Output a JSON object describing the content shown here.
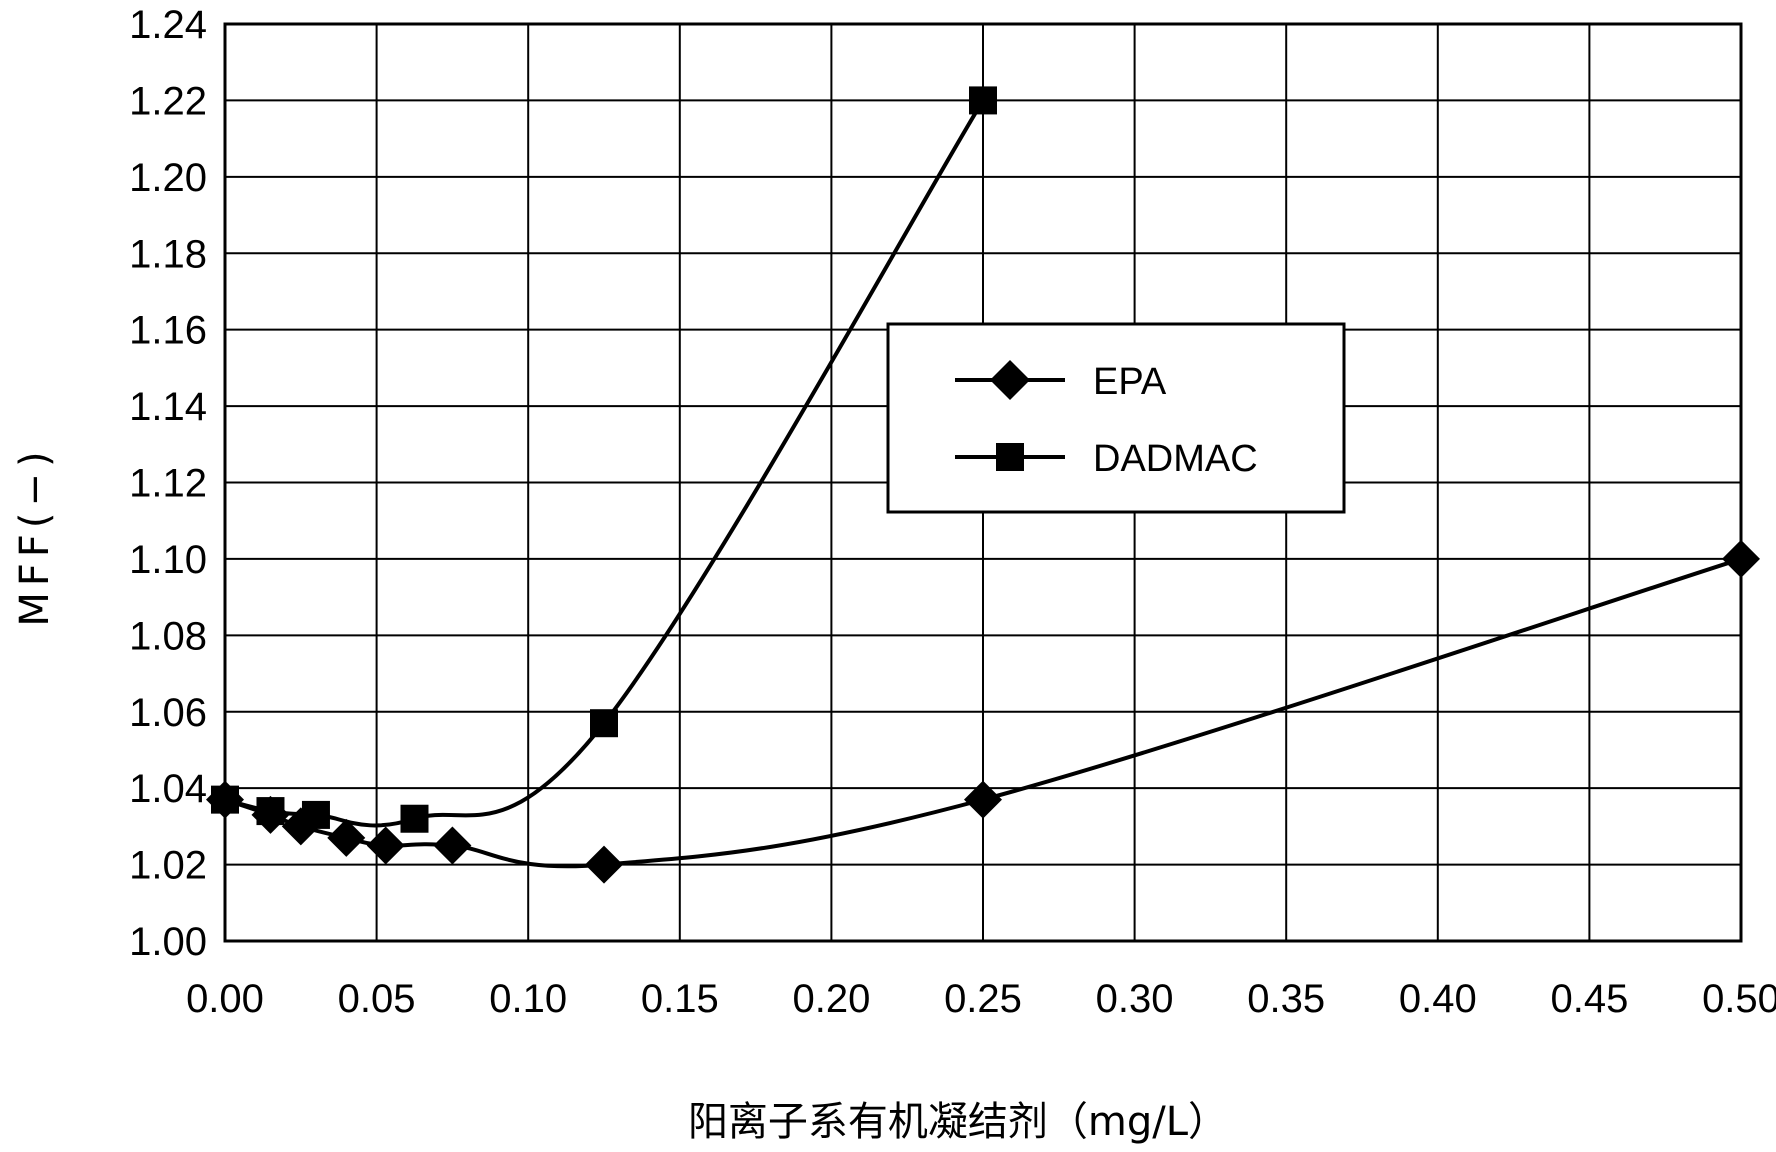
{
  "chart_data": {
    "type": "line",
    "title": "",
    "xlabel": "阳离子系有机凝结剂（mg/L）",
    "ylabel": "MFF(−)",
    "xlim": [
      0,
      0.5
    ],
    "ylim": [
      1.0,
      1.24
    ],
    "xticks": [
      "0.00",
      "0.05",
      "0.10",
      "0.15",
      "0.20",
      "0.25",
      "0.30",
      "0.35",
      "0.40",
      "0.45",
      "0.50"
    ],
    "yticks": [
      "1.00",
      "1.02",
      "1.04",
      "1.06",
      "1.08",
      "1.10",
      "1.12",
      "1.14",
      "1.16",
      "1.18",
      "1.20",
      "1.22",
      "1.24"
    ],
    "grid": true,
    "legend": {
      "position": "upper-center-right"
    },
    "series": [
      {
        "name": "EPA",
        "marker": "diamond",
        "color": "#000000",
        "x": [
          0,
          0.015,
          0.025,
          0.04,
          0.053,
          0.075,
          0.125,
          0.25,
          0.5
        ],
        "y": [
          1.037,
          1.033,
          1.03,
          1.027,
          1.025,
          1.025,
          1.02,
          1.037,
          1.1
        ]
      },
      {
        "name": "DADMAC",
        "marker": "square",
        "color": "#000000",
        "x": [
          0,
          0.015,
          0.03,
          0.0625,
          0.125,
          0.25
        ],
        "y": [
          1.037,
          1.034,
          1.033,
          1.032,
          1.057,
          1.22
        ]
      }
    ]
  }
}
